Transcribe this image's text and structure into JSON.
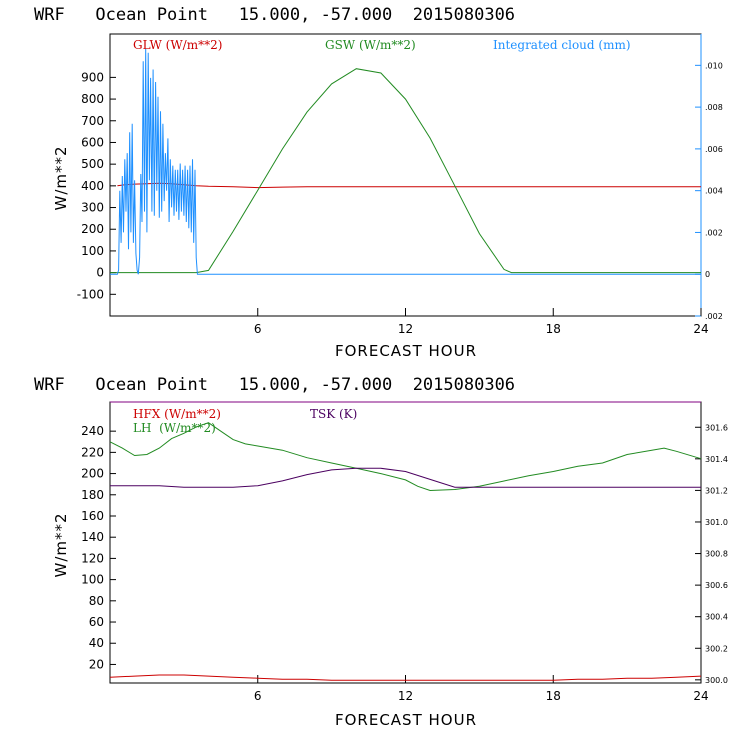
{
  "colors": {
    "red": "#cc0000",
    "green": "#228b22",
    "blue": "#1e90ff",
    "purple": "#4b0060",
    "axis": "#000000",
    "right_axis": "#1e90ff",
    "lower_axis": "#800080"
  },
  "chart_data": [
    {
      "type": "line",
      "title": "WRF   Ocean Point   15.000, -57.000  2015080306",
      "xlabel": "FORECAST HOUR",
      "ylabel": "W/m**2",
      "xlim": [
        0,
        24
      ],
      "ylim": [
        -200,
        1100
      ],
      "x_ticks": [
        6,
        12,
        18,
        24
      ],
      "y_ticks": [
        -100,
        0,
        100,
        200,
        300,
        400,
        500,
        600,
        700,
        800,
        900
      ],
      "y2lim": [
        -0.002,
        0.0115
      ],
      "y2_tick_values": [
        -0.002,
        0,
        0.002,
        0.004,
        0.006,
        0.008,
        0.01
      ],
      "y2_tick_labels": [
        ".002",
        "0",
        ".002",
        ".004",
        ".006",
        ".008",
        ".010"
      ],
      "legend": [
        "GLW (W/m**2)",
        "GSW (W/m**2)",
        "Integrated cloud (mm)"
      ],
      "series": [
        {
          "name": "GLW (W/m**2)",
          "color": "red",
          "axis": "left",
          "x": [
            0.3,
            0.6,
            1.0,
            1.5,
            2.0,
            2.5,
            3.0,
            3.5,
            4.0,
            5.0,
            6.0,
            7.0,
            8.0,
            10.0,
            12.0,
            14.0,
            16.0,
            18.0,
            20.0,
            22.0,
            24.0
          ],
          "values": [
            400,
            405,
            408,
            410,
            412,
            410,
            405,
            400,
            398,
            396,
            392,
            394,
            396,
            396,
            396,
            396,
            396,
            396,
            396,
            396,
            396
          ]
        },
        {
          "name": "GSW (W/m**2)",
          "color": "green",
          "axis": "left",
          "x": [
            0,
            3.5,
            4.0,
            5.0,
            6.0,
            7.0,
            8.0,
            9.0,
            10.0,
            11.0,
            12.0,
            13.0,
            14.0,
            15.0,
            16.0,
            16.3,
            24.0
          ],
          "values": [
            0,
            0,
            10,
            190,
            380,
            570,
            740,
            870,
            940,
            920,
            800,
            620,
            400,
            180,
            15,
            0,
            0
          ]
        },
        {
          "name": "Integrated cloud (mm)",
          "color": "blue",
          "axis": "right",
          "x": [
            0,
            0.3,
            0.35,
            0.4,
            0.45,
            0.5,
            0.55,
            0.6,
            0.65,
            0.7,
            0.75,
            0.8,
            0.85,
            0.9,
            0.95,
            1.0,
            1.05,
            1.1,
            1.15,
            1.2,
            1.25,
            1.3,
            1.35,
            1.4,
            1.45,
            1.5,
            1.55,
            1.6,
            1.65,
            1.7,
            1.75,
            1.8,
            1.85,
            1.9,
            1.95,
            2.0,
            2.05,
            2.1,
            2.15,
            2.2,
            2.25,
            2.3,
            2.35,
            2.4,
            2.45,
            2.5,
            2.55,
            2.6,
            2.65,
            2.7,
            2.75,
            2.8,
            2.85,
            2.9,
            2.95,
            3.0,
            3.05,
            3.1,
            3.15,
            3.2,
            3.25,
            3.3,
            3.35,
            3.4,
            3.45,
            3.5,
            3.55,
            24
          ],
          "values": [
            0,
            0,
            0.0002,
            0.004,
            0.0015,
            0.0047,
            0.002,
            0.0055,
            0.003,
            0.0058,
            0.0012,
            0.0068,
            0.002,
            0.0072,
            0.0015,
            0.0045,
            0.001,
            0.0002,
            0,
            0.0008,
            0.0048,
            0.0025,
            0.0102,
            0.003,
            0.0108,
            0.002,
            0.0106,
            0.0045,
            0.0094,
            0.003,
            0.0098,
            0.0028,
            0.0092,
            0.004,
            0.0085,
            0.0027,
            0.0078,
            0.003,
            0.0072,
            0.0035,
            0.0058,
            0.004,
            0.0065,
            0.0025,
            0.0055,
            0.0032,
            0.0052,
            0.0028,
            0.005,
            0.003,
            0.005,
            0.0026,
            0.0053,
            0.003,
            0.005,
            0.0028,
            0.0052,
            0.0025,
            0.005,
            0.0022,
            0.0052,
            0.002,
            0.0055,
            0.0015,
            0.005,
            0.0008,
            0,
            0
          ]
        }
      ]
    },
    {
      "type": "line",
      "title": "WRF   Ocean Point   15.000, -57.000  2015080306",
      "xlabel": "FORECAST HOUR",
      "ylabel": "W/m**2",
      "xlim": [
        0,
        24
      ],
      "ylim": [
        2.5,
        267.5
      ],
      "x_ticks": [
        6,
        12,
        18,
        24
      ],
      "y_ticks": [
        20,
        40,
        60,
        80,
        100,
        120,
        140,
        160,
        180,
        200,
        220,
        240
      ],
      "y2lim": [
        299.98,
        301.76
      ],
      "y2_tick_values": [
        300.0,
        300.2,
        300.4,
        300.6,
        300.8,
        301.0,
        301.2,
        301.4,
        301.6
      ],
      "y2_tick_labels": [
        "300.0",
        "300.2",
        "300.4",
        "300.6",
        "300.8",
        "301.0",
        "301.2",
        "301.4",
        "301.6"
      ],
      "legend": [
        "HFX (W/m**2)",
        "LH  (W/m**2)",
        "TSK (K)"
      ],
      "series": [
        {
          "name": "HFX (W/m**2)",
          "color": "red",
          "axis": "left",
          "x": [
            0,
            1,
            2,
            3,
            4,
            5,
            6,
            7,
            8,
            9,
            10,
            11,
            12,
            13,
            14,
            15,
            16,
            17,
            18,
            19,
            20,
            21,
            22,
            23,
            24
          ],
          "values": [
            8,
            9,
            10,
            10,
            9,
            8,
            7,
            6,
            6,
            5,
            5,
            5,
            5,
            5,
            5,
            5,
            5,
            5,
            5,
            6,
            6,
            7,
            7,
            8,
            9
          ]
        },
        {
          "name": "LH  (W/m**2)",
          "color": "green",
          "axis": "left",
          "x": [
            0,
            0.5,
            1.0,
            1.5,
            2.0,
            2.5,
            3.0,
            3.5,
            4.0,
            4.5,
            5.0,
            5.5,
            6.0,
            6.5,
            7.0,
            8.0,
            9.0,
            10.0,
            11.0,
            12.0,
            12.5,
            13.0,
            14.0,
            15.0,
            16.0,
            17.0,
            18.0,
            19.0,
            20.0,
            21.0,
            22.0,
            22.5,
            23.0,
            24.0
          ],
          "values": [
            230,
            224,
            217,
            218,
            224,
            233,
            238,
            244,
            248,
            240,
            232,
            228,
            226,
            224,
            222,
            215,
            210,
            205,
            200,
            194,
            188,
            184,
            185,
            188,
            193,
            198,
            202,
            207,
            210,
            218,
            222,
            224,
            221,
            214
          ]
        },
        {
          "name": "TSK (K)",
          "color": "purple",
          "axis": "right",
          "x": [
            0,
            1,
            2,
            3,
            4,
            5,
            6,
            7,
            8,
            9,
            10,
            11,
            12,
            13,
            14,
            15,
            16,
            17,
            18,
            19,
            20,
            21,
            22,
            23,
            24
          ],
          "values": [
            301.23,
            301.23,
            301.23,
            301.22,
            301.22,
            301.22,
            301.23,
            301.26,
            301.3,
            301.33,
            301.34,
            301.34,
            301.32,
            301.27,
            301.22,
            301.22,
            301.22,
            301.22,
            301.22,
            301.22,
            301.22,
            301.22,
            301.22,
            301.22,
            301.22
          ]
        }
      ]
    }
  ]
}
